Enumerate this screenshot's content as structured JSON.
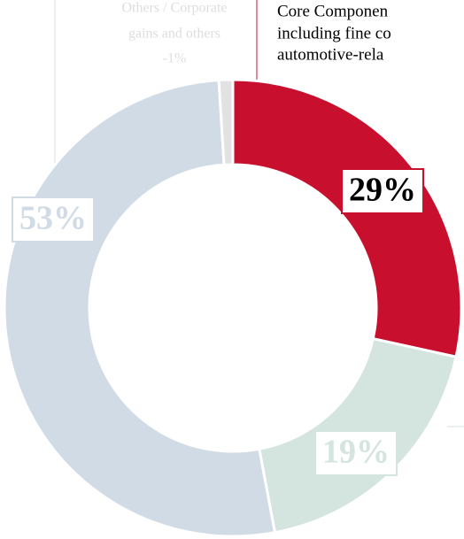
{
  "chart_data": {
    "type": "donut",
    "values": [
      29,
      19,
      53,
      -1
    ],
    "value_labels": [
      "29%",
      "19%",
      "53%",
      "-1%"
    ],
    "colors": [
      "#c8102e",
      "#d4e4df",
      "#d0dbe6",
      "#e2e2e2"
    ],
    "label_colors": [
      "#000000",
      "#d4e4df",
      "#d0dbe6",
      "#dddddd"
    ],
    "others_label": [
      "Others / Corporate",
      "gains and others"
    ],
    "description": [
      "Core Componen",
      "including fine co",
      "automotive-rela"
    ]
  }
}
